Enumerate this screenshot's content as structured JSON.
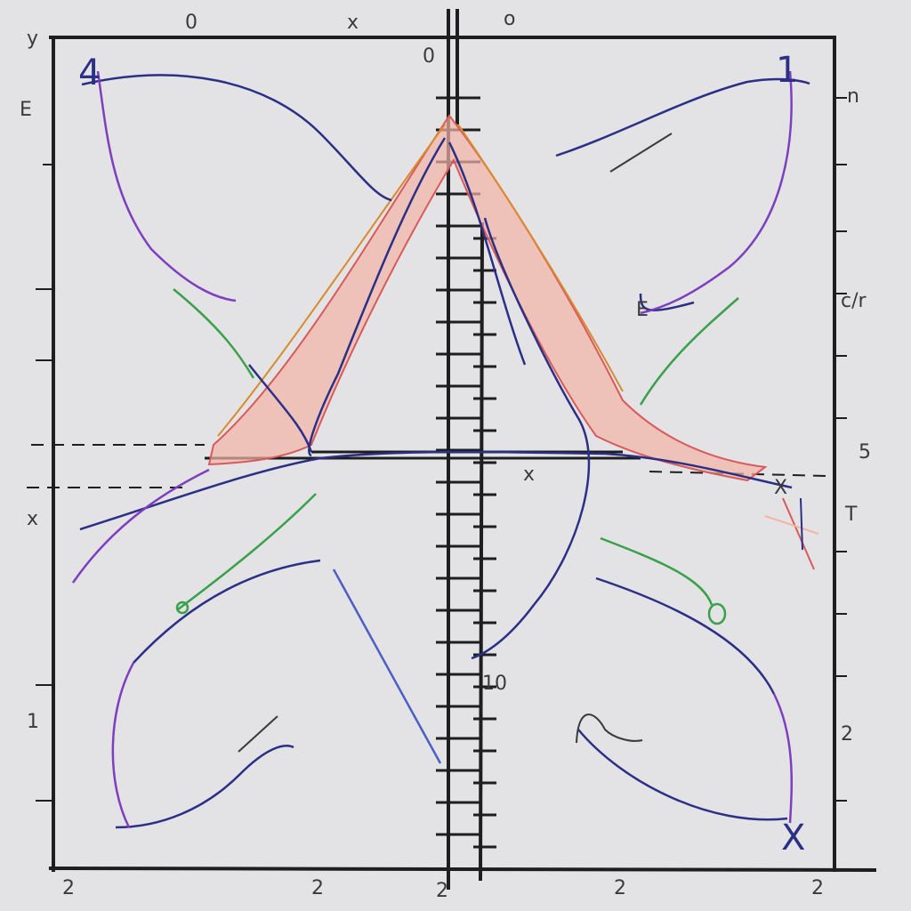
{
  "colors": {
    "background": "#e3e3e5",
    "axis": "#1e1e1e",
    "navy": "#2b2f86",
    "purple": "#7e3fbf",
    "green": "#3aa04a",
    "orange": "#d98a2e",
    "salmon": "#f2b3a6",
    "red": "#d85a5a",
    "blue": "#4b5fc4"
  },
  "labels": {
    "corner_tl": "4",
    "corner_tr": "1",
    "corner_br": "X",
    "top_0": "0",
    "top_x": "x",
    "top_o": "o",
    "top_y": "y",
    "right_n": "n",
    "right_cp": "c/r",
    "right_5": "5",
    "right_t": "T",
    "right_2": "2",
    "left_e": "E",
    "left_1": "1",
    "left_x": "x",
    "bottom_2a": "2",
    "bottom_2b": "2",
    "bottom_2c": "2",
    "bottom_2d": "2",
    "bottom_2e": "2",
    "axis_x": "x",
    "axis_10": "10",
    "axis_0": "0",
    "letter_e": "E",
    "letter_o": "o",
    "mid_x": "X"
  }
}
